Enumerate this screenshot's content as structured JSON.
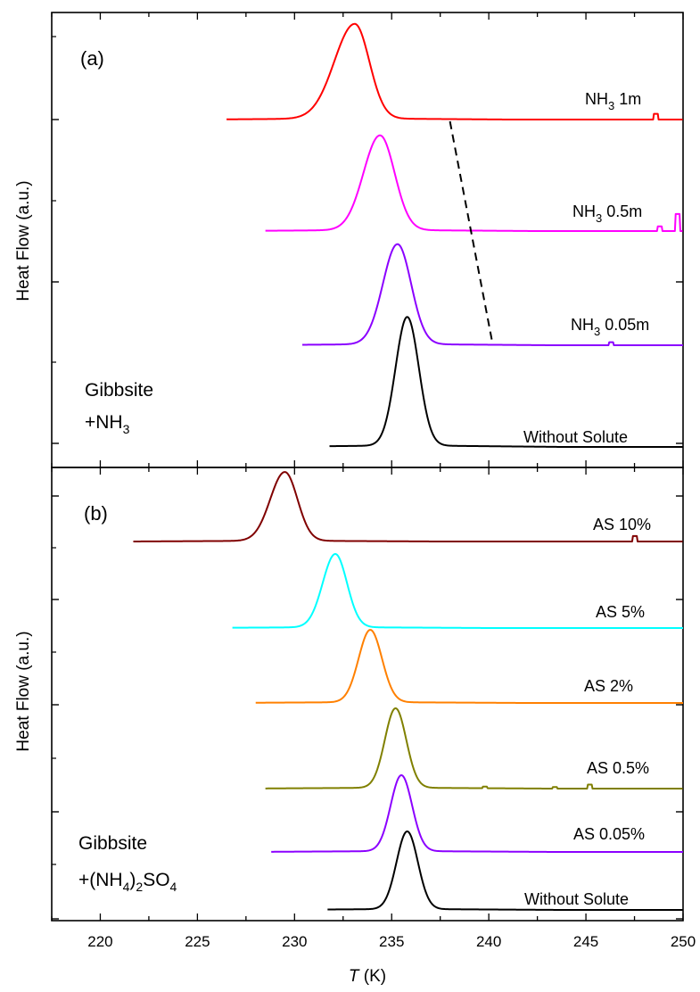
{
  "figure": {
    "x_axis_title_italic": "T",
    "x_axis_title_rest": " (K)"
  },
  "chart_data": [
    {
      "type": "line",
      "panel": "a",
      "panel_label": "(a)",
      "ylabel": "Heat Flow (a.u.)",
      "xlim": [
        217.5,
        250
      ],
      "grid": false,
      "legend": "none",
      "annotation": {
        "line1": "Gibbsite",
        "line2_prefix": "+NH",
        "line2_sub": "3"
      },
      "trend_line": {
        "style": "dashed",
        "x": [
          238.0,
          240.2
        ],
        "series": [
          "NH3 1m",
          "NH3 0.05m"
        ]
      },
      "series": [
        {
          "name": "NH3 1m",
          "label_main": "NH",
          "label_sub": "3",
          "label_tail": " 1m",
          "color": "#ff0000",
          "baseline": 0,
          "peak_x": 233.1,
          "peak_height": 1.0,
          "width_left": 1.05,
          "width_right": 0.75,
          "x_start": 226.5,
          "x_end": 250,
          "glitches": [
            {
              "x": 248.6,
              "h": 0.06
            }
          ]
        },
        {
          "name": "NH3 0.5m",
          "label_main": "NH",
          "label_sub": "3",
          "label_tail": " 0.5m",
          "color": "#ff00ff",
          "baseline": 0,
          "peak_x": 234.4,
          "peak_height": 1.0,
          "width_left": 0.85,
          "width_right": 0.75,
          "x_start": 228.5,
          "x_end": 250,
          "glitches": [
            {
              "x": 248.8,
              "h": 0.05
            },
            {
              "x": 249.7,
              "h": 0.18
            }
          ]
        },
        {
          "name": "NH3 0.05m",
          "label_main": "NH",
          "label_sub": "3",
          "label_tail": " 0.05m",
          "color": "#8b00ff",
          "baseline": 0,
          "peak_x": 235.3,
          "peak_height": 1.0,
          "width_left": 0.75,
          "width_right": 0.7,
          "x_start": 230.4,
          "x_end": 250,
          "glitches": [
            {
              "x": 246.3,
              "h": 0.03
            }
          ]
        },
        {
          "name": "Without Solute",
          "label_main": "Without Solute",
          "label_sub": "",
          "label_tail": "",
          "color": "#000000",
          "baseline": 0,
          "peak_x": 235.8,
          "peak_height": 1.0,
          "width_left": 0.6,
          "width_right": 0.6,
          "x_start": 231.8,
          "x_end": 250,
          "glitches": []
        }
      ]
    },
    {
      "type": "line",
      "panel": "b",
      "panel_label": "(b)",
      "ylabel": "Heat Flow (a.u.)",
      "xlabel": "T (K)",
      "xlim": [
        217.5,
        250
      ],
      "xticks": [
        220,
        225,
        230,
        235,
        240,
        245,
        250
      ],
      "xticklabels": [
        "220",
        "225",
        "230",
        "235",
        "240",
        "245",
        "250"
      ],
      "grid": false,
      "legend": "none",
      "annotation": {
        "line1": "Gibbsite",
        "line2_prefix": "+(NH",
        "line2_sub1": "4",
        "line2_mid": ")",
        "line2_sub2": "2",
        "line2_suffix": "SO",
        "line2_sub3": "4"
      },
      "series": [
        {
          "name": "AS 10%",
          "label_main": "AS 10%",
          "label_sub": "",
          "label_tail": "",
          "color": "#800000",
          "peak_x": 229.5,
          "peak_height": 1.0,
          "width_left": 0.75,
          "width_right": 0.65,
          "x_start": 221.7,
          "x_end": 250,
          "glitches": [
            {
              "x": 247.5,
              "h": 0.08
            }
          ]
        },
        {
          "name": "AS 5%",
          "label_main": "AS 5%",
          "label_sub": "",
          "label_tail": "",
          "color": "#00ffff",
          "peak_x": 232.1,
          "peak_height": 1.0,
          "width_left": 0.65,
          "width_right": 0.6,
          "x_start": 226.8,
          "x_end": 250,
          "glitches": []
        },
        {
          "name": "AS 2%",
          "label_main": "AS 2%",
          "label_sub": "",
          "label_tail": "",
          "color": "#ff8000",
          "peak_x": 233.9,
          "peak_height": 1.0,
          "width_left": 0.6,
          "width_right": 0.6,
          "x_start": 228.0,
          "x_end": 250,
          "glitches": []
        },
        {
          "name": "AS 0.5%",
          "label_main": "AS 0.5%",
          "label_sub": "",
          "label_tail": "",
          "color": "#808000",
          "peak_x": 235.2,
          "peak_height": 1.0,
          "width_left": 0.55,
          "width_right": 0.55,
          "x_start": 228.5,
          "x_end": 250,
          "glitches": [
            {
              "x": 245.2,
              "h": 0.05
            },
            {
              "x": 243.4,
              "h": 0.02
            },
            {
              "x": 239.8,
              "h": 0.02
            }
          ]
        },
        {
          "name": "AS 0.05%",
          "label_main": "AS 0.05%",
          "label_sub": "",
          "label_tail": "",
          "color": "#8b00ff",
          "peak_x": 235.5,
          "peak_height": 1.0,
          "width_left": 0.55,
          "width_right": 0.55,
          "x_start": 228.8,
          "x_end": 250,
          "glitches": []
        },
        {
          "name": "Without Solute",
          "label_main": "Without Solute",
          "label_sub": "",
          "label_tail": "",
          "color": "#000000",
          "peak_x": 235.8,
          "peak_height": 1.0,
          "width_left": 0.55,
          "width_right": 0.55,
          "x_start": 231.7,
          "x_end": 250,
          "glitches": []
        }
      ]
    }
  ]
}
